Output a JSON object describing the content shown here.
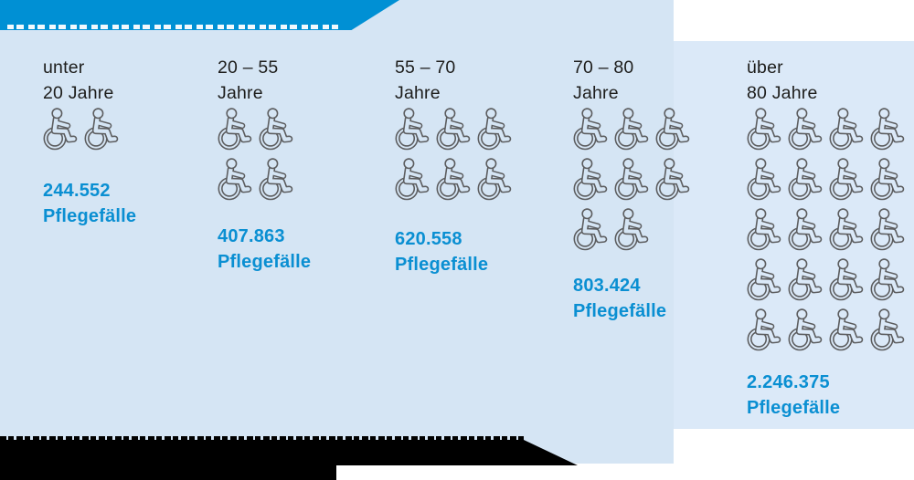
{
  "colors": {
    "banner_blue": "#0090d4",
    "panel_blue": "#d5e5f4",
    "right_panel_blue": "#dbe9f8",
    "value_blue": "#0a8fd2",
    "label_black": "#1d1d1b",
    "icon_gray": "#5c5d5f",
    "footer_black": "#000000"
  },
  "columns": [
    {
      "age_line1": "unter",
      "age_line2": "20 Jahre",
      "icon_rows": [
        2
      ],
      "value": "244.552",
      "unit": "Pflegefälle"
    },
    {
      "age_line1": "20 – 55",
      "age_line2": "Jahre",
      "icon_rows": [
        2,
        2
      ],
      "value": "407.863",
      "unit": "Pflegefälle"
    },
    {
      "age_line1": "55 – 70",
      "age_line2": "Jahre",
      "icon_rows": [
        3,
        3
      ],
      "value": "620.558",
      "unit": "Pflegefälle"
    },
    {
      "age_line1": "70 – 80",
      "age_line2": "Jahre",
      "icon_rows": [
        3,
        3,
        2
      ],
      "value": "803.424",
      "unit": "Pflegefälle"
    },
    {
      "age_line1": "über",
      "age_line2": "80 Jahre",
      "icon_rows": [
        4,
        4,
        4,
        4,
        4
      ],
      "value": "2.246.375",
      "unit": "Pflegefälle"
    }
  ],
  "chart_data": {
    "type": "bar",
    "variant": "pictogram with wheelchair icon units",
    "categories": [
      "unter 20 Jahre",
      "20–55 Jahre",
      "55–70 Jahre",
      "70–80 Jahre",
      "über 80 Jahre"
    ],
    "values": [
      244552,
      407863,
      620558,
      803424,
      2246375
    ],
    "value_labels": [
      "244.552",
      "407.863",
      "620.558",
      "803.424",
      "2.246.375"
    ],
    "unit_label": "Pflegefälle",
    "icons_per_category": [
      2,
      4,
      6,
      8,
      20
    ],
    "icon_glyph": "wheelchair",
    "legend": "none",
    "grid": false
  }
}
